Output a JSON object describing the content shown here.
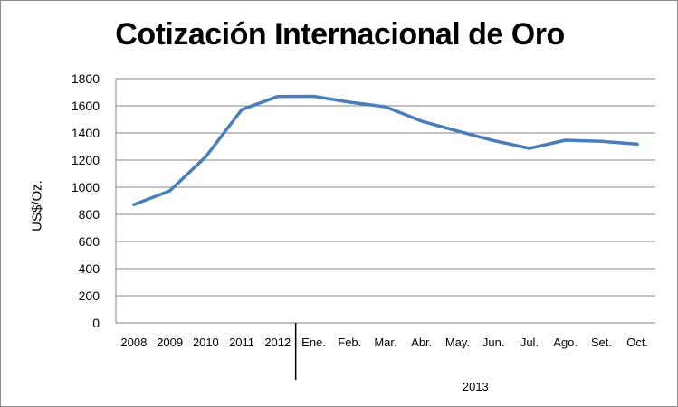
{
  "chart_data": {
    "type": "line",
    "title": "Cotización Internacional de Oro",
    "ylabel": "US$/Oz.",
    "xlabel": "",
    "ylim": [
      0,
      1800
    ],
    "yticks": [
      0,
      200,
      400,
      600,
      800,
      1000,
      1200,
      1400,
      1600,
      1800
    ],
    "categories": [
      "2008",
      "2009",
      "2010",
      "2011",
      "2012",
      "Ene.",
      "Feb.",
      "Mar.",
      "Abr.",
      "May.",
      "Jun.",
      "Jul.",
      "Ago.",
      "Set.",
      "Oct."
    ],
    "group_label": "2013",
    "values": [
      872,
      973,
      1225,
      1572,
      1669,
      1670,
      1627,
      1593,
      1487,
      1414,
      1344,
      1287,
      1347,
      1338,
      1317
    ],
    "grid": true,
    "legend": "none",
    "line_color": "#4a7ebb"
  }
}
